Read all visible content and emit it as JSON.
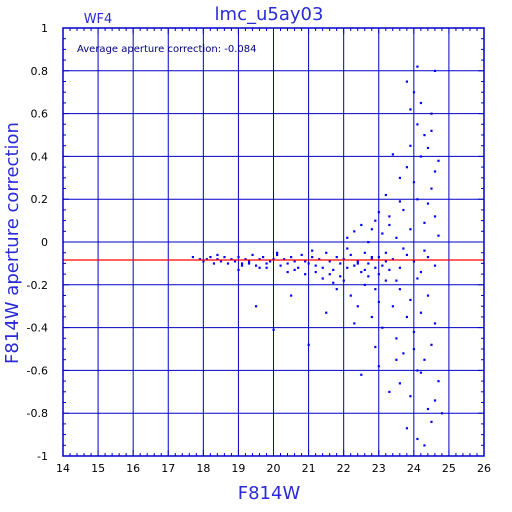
{
  "chart_data": {
    "type": "scatter",
    "title": "lmc_u5ay03",
    "panel_label": "WF4",
    "xlabel": "F814W",
    "ylabel": "F814W aperture correction",
    "xlim": [
      14,
      26
    ],
    "ylim": [
      -1,
      1
    ],
    "x_ticks": [
      "14",
      "15",
      "16",
      "17",
      "18",
      "19",
      "20",
      "21",
      "22",
      "23",
      "24",
      "25",
      "26"
    ],
    "y_ticks": [
      "-1",
      "-0.8",
      "-0.6",
      "-0.4",
      "-0.2",
      "0",
      "0.2",
      "0.4",
      "0.6",
      "0.8",
      "1"
    ],
    "grid": true,
    "annotation": "Average aperture correction:  -0.084",
    "reference_line": {
      "y": -0.084,
      "color": "#ff0000"
    },
    "colors": {
      "frame": "#0000c8",
      "points": "#0000ff",
      "text": "#2b2bd6"
    },
    "series": [
      {
        "points": [
          [
            17.7,
            -0.07
          ],
          [
            17.9,
            -0.08
          ],
          [
            18.0,
            -0.09
          ],
          [
            18.1,
            -0.08
          ],
          [
            18.2,
            -0.07
          ],
          [
            18.3,
            -0.1
          ],
          [
            18.4,
            -0.08
          ],
          [
            18.5,
            -0.09
          ],
          [
            18.6,
            -0.07
          ],
          [
            18.7,
            -0.1
          ],
          [
            18.8,
            -0.08
          ],
          [
            18.9,
            -0.09
          ],
          [
            19.0,
            -0.07
          ],
          [
            19.1,
            -0.1
          ],
          [
            19.2,
            -0.08
          ],
          [
            19.3,
            -0.09
          ],
          [
            19.4,
            -0.06
          ],
          [
            19.5,
            -0.11
          ],
          [
            19.6,
            -0.08
          ],
          [
            19.7,
            -0.07
          ],
          [
            19.8,
            -0.1
          ],
          [
            19.9,
            -0.09
          ],
          [
            20.0,
            -0.08
          ],
          [
            20.1,
            -0.06
          ],
          [
            20.2,
            -0.11
          ],
          [
            20.3,
            -0.08
          ],
          [
            20.4,
            -0.1
          ],
          [
            20.5,
            -0.07
          ],
          [
            20.6,
            -0.09
          ],
          [
            20.7,
            -0.12
          ],
          [
            20.8,
            -0.06
          ],
          [
            20.9,
            -0.09
          ],
          [
            21.0,
            -0.1
          ],
          [
            21.1,
            -0.07
          ],
          [
            21.2,
            -0.11
          ],
          [
            21.3,
            -0.08
          ],
          [
            21.4,
            -0.12
          ],
          [
            21.5,
            -0.05
          ],
          [
            21.6,
            -0.09
          ],
          [
            21.7,
            -0.13
          ],
          [
            21.8,
            -0.07
          ],
          [
            21.9,
            -0.1
          ],
          [
            22.0,
            -0.08
          ],
          [
            22.1,
            -0.12
          ],
          [
            22.2,
            -0.06
          ],
          [
            22.3,
            -0.11
          ],
          [
            22.4,
            -0.09
          ],
          [
            22.5,
            -0.14
          ],
          [
            22.6,
            -0.05
          ],
          [
            22.7,
            -0.1
          ],
          [
            22.8,
            -0.08
          ],
          [
            22.9,
            -0.12
          ],
          [
            23.0,
            -0.07
          ],
          [
            23.1,
            -0.11
          ],
          [
            23.2,
            -0.09
          ],
          [
            23.3,
            -0.13
          ],
          [
            18.4,
            -0.06
          ],
          [
            19.1,
            -0.11
          ],
          [
            19.6,
            -0.12
          ],
          [
            20.1,
            -0.05
          ],
          [
            20.6,
            -0.13
          ],
          [
            21.1,
            -0.04
          ],
          [
            21.6,
            -0.15
          ],
          [
            22.1,
            -0.03
          ],
          [
            19.0,
            -0.13
          ],
          [
            19.5,
            -0.3
          ],
          [
            20.0,
            -0.41
          ],
          [
            20.5,
            -0.25
          ],
          [
            21.0,
            -0.48
          ],
          [
            21.5,
            -0.33
          ],
          [
            22.0,
            -0.18
          ],
          [
            21.8,
            -0.22
          ],
          [
            22.2,
            -0.25
          ],
          [
            22.4,
            -0.3
          ],
          [
            22.6,
            -0.2
          ],
          [
            22.8,
            -0.35
          ],
          [
            23.0,
            -0.28
          ],
          [
            22.3,
            -0.38
          ],
          [
            22.7,
            -0.16
          ],
          [
            22.9,
            -0.22
          ],
          [
            23.1,
            -0.4
          ],
          [
            23.2,
            -0.18
          ],
          [
            23.4,
            -0.3
          ],
          [
            23.5,
            -0.45
          ],
          [
            23.6,
            -0.22
          ],
          [
            23.7,
            -0.52
          ],
          [
            23.8,
            -0.35
          ],
          [
            23.9,
            -0.27
          ],
          [
            24.0,
            -0.42
          ],
          [
            24.1,
            -0.6
          ],
          [
            24.2,
            -0.33
          ],
          [
            24.3,
            -0.55
          ],
          [
            24.4,
            -0.25
          ],
          [
            24.5,
            -0.48
          ],
          [
            24.6,
            -0.38
          ],
          [
            24.7,
            -0.65
          ],
          [
            22.5,
            -0.62
          ],
          [
            23.0,
            -0.58
          ],
          [
            23.3,
            -0.7
          ],
          [
            23.6,
            -0.66
          ],
          [
            23.9,
            -0.72
          ],
          [
            24.2,
            -0.61
          ],
          [
            24.4,
            -0.78
          ],
          [
            24.6,
            -0.74
          ],
          [
            23.8,
            -0.87
          ],
          [
            24.1,
            -0.92
          ],
          [
            24.5,
            -0.84
          ],
          [
            24.8,
            -0.8
          ],
          [
            24.3,
            -0.95
          ],
          [
            22.9,
            -0.49
          ],
          [
            23.5,
            -0.55
          ],
          [
            24.0,
            -0.5
          ],
          [
            22.1,
            0.02
          ],
          [
            22.3,
            0.05
          ],
          [
            22.5,
            0.08
          ],
          [
            22.7,
            0.0
          ],
          [
            22.9,
            0.1
          ],
          [
            23.1,
            0.04
          ],
          [
            23.3,
            0.12
          ],
          [
            23.5,
            0.02
          ],
          [
            23.7,
            0.15
          ],
          [
            23.9,
            0.06
          ],
          [
            24.1,
            0.2
          ],
          [
            24.3,
            0.09
          ],
          [
            24.5,
            0.25
          ],
          [
            24.7,
            0.03
          ],
          [
            23.2,
            0.22
          ],
          [
            23.6,
            0.3
          ],
          [
            23.8,
            0.35
          ],
          [
            24.0,
            0.28
          ],
          [
            24.2,
            0.4
          ],
          [
            24.4,
            0.18
          ],
          [
            24.6,
            0.33
          ],
          [
            23.4,
            0.41
          ],
          [
            23.9,
            0.45
          ],
          [
            24.3,
            0.5
          ],
          [
            24.1,
            0.55
          ],
          [
            24.5,
            0.6
          ],
          [
            24.0,
            0.7
          ],
          [
            24.2,
            0.65
          ],
          [
            24.6,
            0.8
          ],
          [
            24.1,
            0.82
          ],
          [
            23.8,
            0.75
          ],
          [
            23.9,
            0.62
          ],
          [
            24.4,
            0.44
          ],
          [
            24.5,
            0.52
          ],
          [
            24.7,
            0.38
          ],
          [
            24.6,
            0.12
          ],
          [
            23.6,
            0.19
          ],
          [
            23.3,
            0.08
          ],
          [
            23.0,
            0.14
          ],
          [
            22.8,
            0.06
          ],
          [
            23.2,
            -0.05
          ],
          [
            23.4,
            -0.08
          ],
          [
            23.6,
            -0.12
          ],
          [
            23.8,
            -0.06
          ],
          [
            24.0,
            -0.09
          ],
          [
            24.2,
            -0.14
          ],
          [
            24.4,
            -0.07
          ],
          [
            24.6,
            -0.11
          ],
          [
            22.4,
            -0.1
          ],
          [
            22.6,
            -0.13
          ],
          [
            22.8,
            -0.07
          ],
          [
            23.0,
            -0.15
          ],
          [
            23.5,
            -0.18
          ],
          [
            23.7,
            -0.03
          ],
          [
            24.1,
            -0.17
          ],
          [
            24.3,
            -0.04
          ],
          [
            21.9,
            -0.16
          ],
          [
            21.7,
            -0.19
          ],
          [
            21.4,
            -0.17
          ],
          [
            21.2,
            -0.14
          ],
          [
            20.9,
            -0.15
          ],
          [
            20.4,
            -0.14
          ],
          [
            19.8,
            -0.12
          ],
          [
            19.3,
            -0.1
          ]
        ]
      }
    ]
  }
}
